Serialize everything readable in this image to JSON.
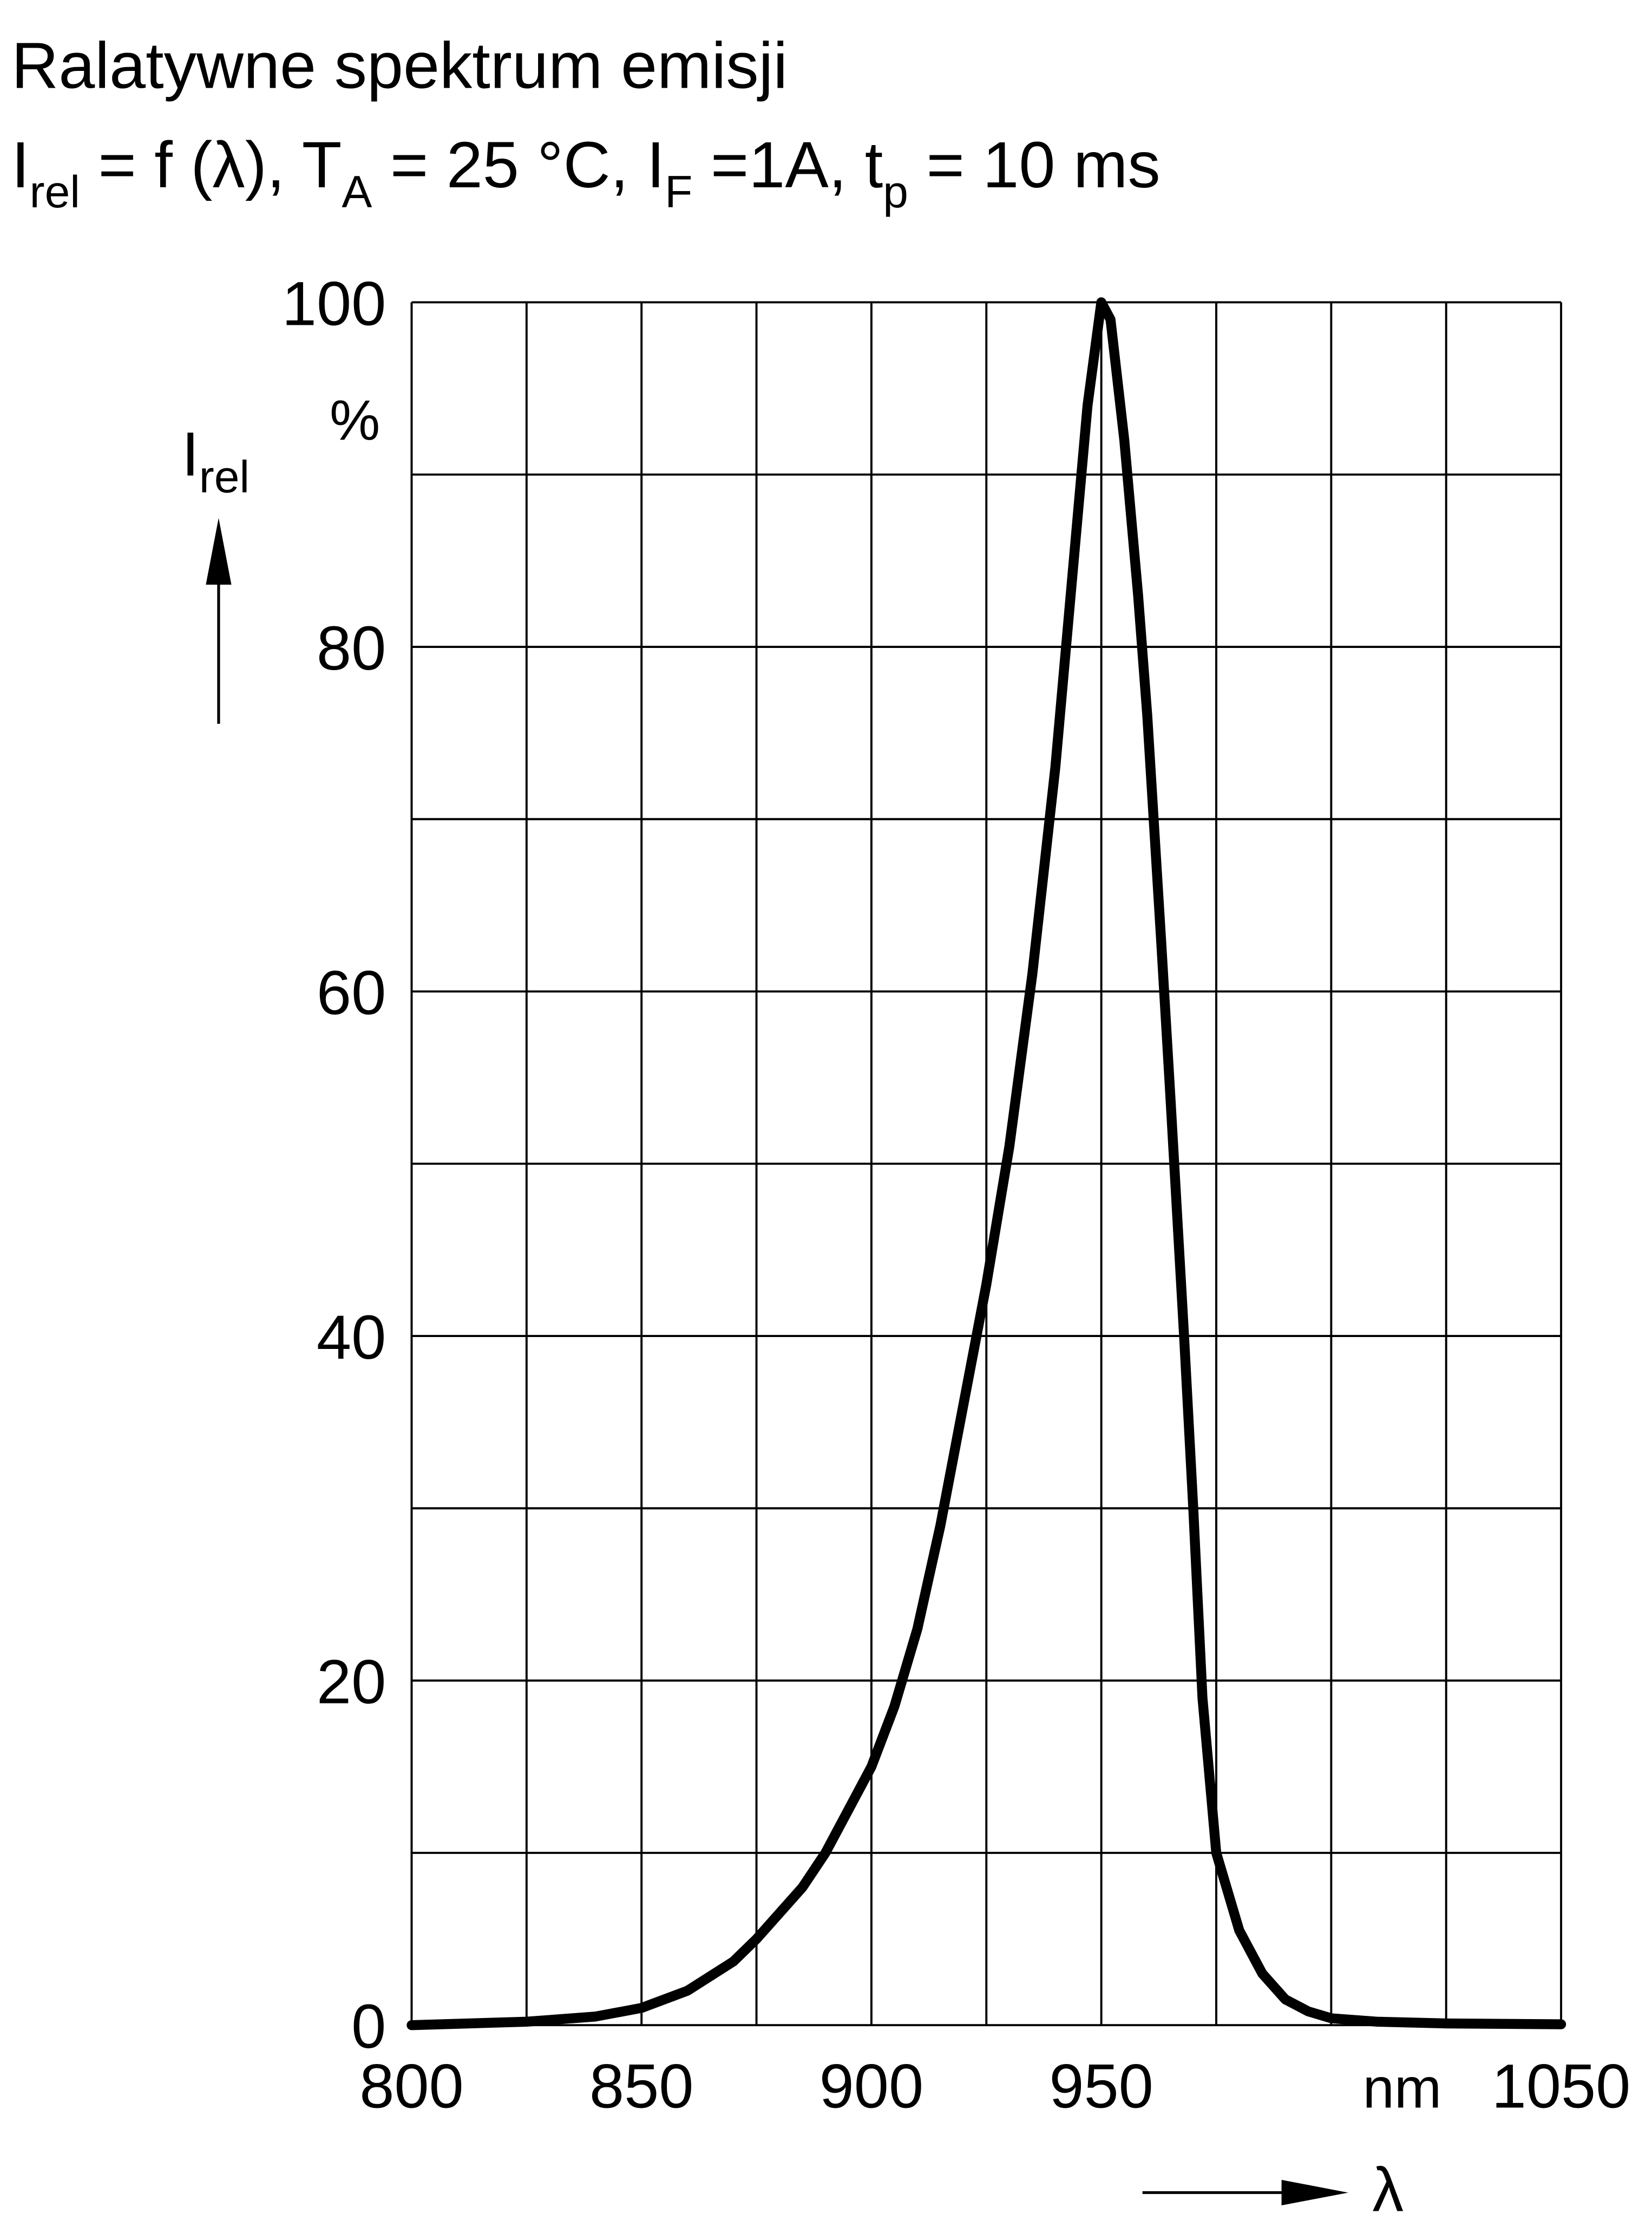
{
  "chart_data": {
    "type": "line",
    "title": "Ralatywne spektrum emisji",
    "subtitle_parts": [
      {
        "text": "I"
      },
      {
        "sub": "rel"
      },
      {
        "text": " = f (λ), T"
      },
      {
        "sub": "A"
      },
      {
        "text": " = 25 °C, I"
      },
      {
        "sub": "F"
      },
      {
        "text": " =1A, t"
      },
      {
        "sub": "p"
      },
      {
        "text": " = 10 ms"
      }
    ],
    "y_label": {
      "text": "I",
      "sub": "rel"
    },
    "y_unit": "%",
    "x_label": "λ",
    "x_unit": "nm",
    "x": [
      800,
      825,
      840,
      850,
      860,
      870,
      875,
      885,
      890,
      900,
      905,
      910,
      915,
      920,
      925,
      930,
      935,
      940,
      943,
      945,
      947,
      950,
      952,
      955,
      958,
      960,
      963,
      965,
      968,
      970,
      972,
      975,
      980,
      985,
      990,
      995,
      1000,
      1010,
      1025,
      1050
    ],
    "series": [
      {
        "color": "#000000",
        "values": [
          0,
          0.2,
          0.5,
          1,
          2,
          3.7,
          5,
          8,
          10,
          15,
          18.5,
          23,
          29,
          36,
          43,
          51,
          61,
          73,
          82,
          88,
          94,
          100,
          99,
          92,
          83,
          76,
          63,
          54,
          40,
          30,
          19,
          10,
          5.5,
          3,
          1.5,
          0.8,
          0.4,
          0.2,
          0.1,
          0.05
        ]
      }
    ],
    "xlim": [
      800,
      1050
    ],
    "ylim": [
      0,
      100
    ],
    "xticks": [
      800,
      850,
      900,
      950,
      1050
    ],
    "yticks": [
      0,
      20,
      40,
      60,
      80,
      100
    ],
    "xgrid": [
      800,
      825,
      850,
      875,
      900,
      925,
      950,
      975,
      1000,
      1025,
      1050
    ],
    "ygrid": [
      0,
      10,
      20,
      30,
      40,
      50,
      60,
      70,
      80,
      90,
      100
    ]
  }
}
